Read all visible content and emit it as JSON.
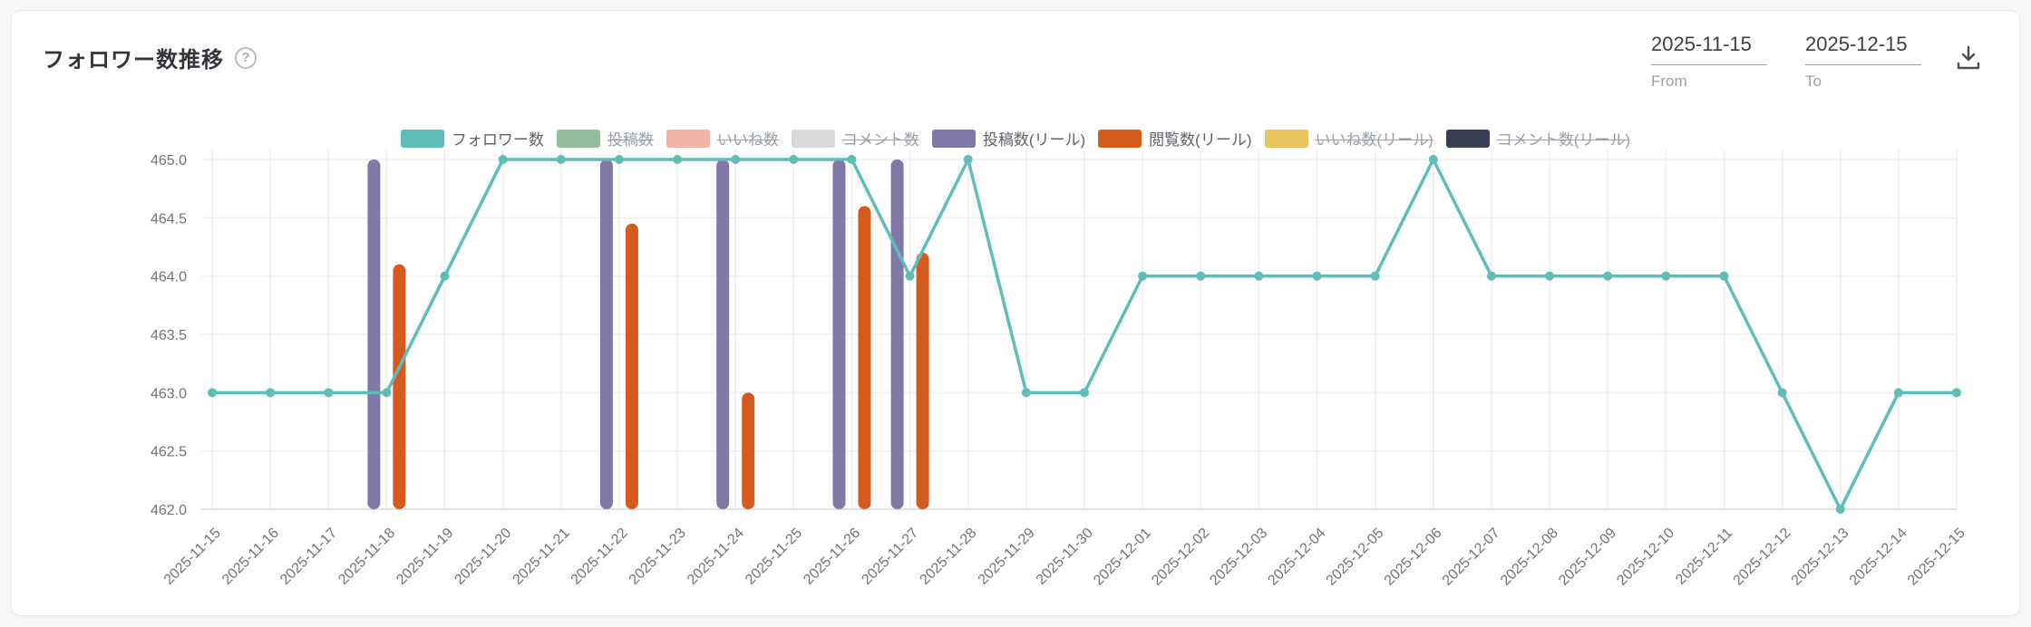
{
  "card": {
    "title": "フォロワー数推移",
    "help_icon": "?",
    "date_range": {
      "from": {
        "value": "2025-11-15",
        "label": "From"
      },
      "to": {
        "value": "2025-12-15",
        "label": "To"
      }
    },
    "download_icon": "download-tray"
  },
  "legend": {
    "items": [
      {
        "label": "フォロワー数",
        "color": "#5fbdb7",
        "active": true
      },
      {
        "label": "投稿数",
        "color": "#94bd9c",
        "active": false
      },
      {
        "label": "いいね数",
        "color": "#f2b3ab",
        "active": false
      },
      {
        "label": "コメント数",
        "color": "#d9d9d9",
        "active": false
      },
      {
        "label": "投稿数(リール)",
        "color": "#8178a8",
        "active": true
      },
      {
        "label": "閲覧数(リール)",
        "color": "#d55a1e",
        "active": true
      },
      {
        "label": "いいね数(リール)",
        "color": "#e9c45f",
        "active": false
      },
      {
        "label": "コメント数(リール)",
        "color": "#3a3e52",
        "active": false
      }
    ]
  },
  "chart_data": {
    "type": "line+bar",
    "title": "フォロワー数推移",
    "x": [
      "2025-11-15",
      "2025-11-16",
      "2025-11-17",
      "2025-11-18",
      "2025-11-19",
      "2025-11-20",
      "2025-11-21",
      "2025-11-22",
      "2025-11-23",
      "2025-11-24",
      "2025-11-25",
      "2025-11-26",
      "2025-11-27",
      "2025-11-28",
      "2025-11-29",
      "2025-11-30",
      "2025-12-01",
      "2025-12-02",
      "2025-12-03",
      "2025-12-04",
      "2025-12-05",
      "2025-12-06",
      "2025-12-07",
      "2025-12-08",
      "2025-12-09",
      "2025-12-10",
      "2025-12-11",
      "2025-12-12",
      "2025-12-13",
      "2025-12-14",
      "2025-12-15"
    ],
    "ylim": [
      462.0,
      465.0
    ],
    "yticks": [
      462.0,
      462.5,
      463.0,
      463.5,
      464.0,
      464.5,
      465.0
    ],
    "grid": true,
    "legend_position": "top",
    "series": [
      {
        "name": "フォロワー数",
        "type": "line",
        "color": "#5fbdb7",
        "values": [
          463,
          463,
          463,
          463,
          464,
          465,
          465,
          465,
          465,
          465,
          465,
          465,
          464,
          465,
          463,
          463,
          464,
          464,
          464,
          464,
          464,
          465,
          464,
          464,
          464,
          464,
          464,
          463,
          462,
          463,
          463
        ]
      },
      {
        "name": "投稿数(リール)",
        "type": "bar",
        "color": "#8178a8",
        "values": [
          null,
          null,
          null,
          465,
          null,
          null,
          null,
          465,
          null,
          465,
          null,
          465,
          465,
          null,
          null,
          null,
          null,
          null,
          null,
          null,
          null,
          null,
          null,
          null,
          null,
          null,
          null,
          null,
          null,
          null,
          null
        ]
      },
      {
        "name": "閲覧数(リール)",
        "type": "bar",
        "color": "#d55a1e",
        "values": [
          null,
          null,
          null,
          464.1,
          null,
          null,
          null,
          464.45,
          null,
          463.0,
          null,
          464.6,
          464.2,
          null,
          null,
          null,
          null,
          null,
          null,
          null,
          null,
          null,
          null,
          null,
          null,
          null,
          null,
          null,
          null,
          null,
          null
        ]
      }
    ]
  }
}
